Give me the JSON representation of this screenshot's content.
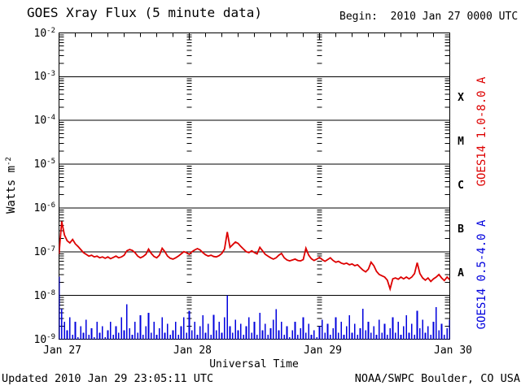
{
  "header": {
    "title": "GOES Xray Flux (5 minute data)",
    "begin": "Begin:  2010 Jan 27 0000 UTC"
  },
  "footer": {
    "updated": "Updated 2010 Jan 29 23:05:11 UTC",
    "source": "NOAA/SWPC Boulder, CO USA"
  },
  "colors": {
    "long_channel": "#dd0000",
    "short_channel": "#0000dd",
    "axis": "#000000",
    "background": "#ffffff"
  },
  "chart_data": {
    "type": "line",
    "title": "GOES Xray Flux (5 minute data)",
    "begin_time": "2010 Jan 27 0000 UTC",
    "xlabel": "Universal Time",
    "ylabel_base": "Watts m",
    "ylabel_exp": "-2",
    "yscale": "log",
    "ylim_log10": [
      -9,
      -2
    ],
    "x_range_hours": [
      0,
      72
    ],
    "grid": {
      "horizontal_decades": true,
      "vertical_day_dotted_hours": [
        24,
        48
      ],
      "minor_tick_hours": 3
    },
    "y_ticks": [
      {
        "base": "10",
        "exp": "-2"
      },
      {
        "base": "10",
        "exp": "-3"
      },
      {
        "base": "10",
        "exp": "-4"
      },
      {
        "base": "10",
        "exp": "-5"
      },
      {
        "base": "10",
        "exp": "-6"
      },
      {
        "base": "10",
        "exp": "-7"
      },
      {
        "base": "10",
        "exp": "-8"
      },
      {
        "base": "10",
        "exp": "-9"
      }
    ],
    "flux_classes": [
      {
        "label": "X",
        "log_center": -3.5
      },
      {
        "label": "M",
        "log_center": -4.5
      },
      {
        "label": "C",
        "log_center": -5.5
      },
      {
        "label": "B",
        "log_center": -6.5
      },
      {
        "label": "A",
        "log_center": -7.5
      }
    ],
    "x_tick_labels": [
      {
        "label": "Jan 27",
        "hour": 0
      },
      {
        "label": "Jan 28",
        "hour": 24
      },
      {
        "label": "Jan 29",
        "hour": 48
      },
      {
        "label": "Jan 30",
        "hour": 72
      }
    ],
    "series": [
      {
        "name": "GOES14 1.0-8.0 A",
        "color": "#dd0000",
        "render": "line",
        "units": "W m^-2 (log10)",
        "sample_interval_hours": 0.5,
        "log10_flux": [
          -7.05,
          -6.31,
          -6.62,
          -6.75,
          -6.8,
          -6.72,
          -6.82,
          -6.88,
          -6.95,
          -7.02,
          -7.06,
          -7.1,
          -7.08,
          -7.12,
          -7.1,
          -7.14,
          -7.12,
          -7.15,
          -7.12,
          -7.16,
          -7.13,
          -7.1,
          -7.14,
          -7.12,
          -7.08,
          -6.98,
          -6.95,
          -6.97,
          -7.02,
          -7.1,
          -7.14,
          -7.11,
          -7.06,
          -6.94,
          -7.04,
          -7.11,
          -7.14,
          -7.08,
          -6.92,
          -7.0,
          -7.1,
          -7.15,
          -7.17,
          -7.14,
          -7.1,
          -7.05,
          -7.0,
          -7.02,
          -7.06,
          -7.0,
          -6.96,
          -6.93,
          -6.96,
          -7.02,
          -7.07,
          -7.1,
          -7.08,
          -7.11,
          -7.12,
          -7.09,
          -7.04,
          -6.94,
          -6.55,
          -6.9,
          -6.84,
          -6.78,
          -6.81,
          -6.88,
          -6.94,
          -7.0,
          -7.02,
          -6.98,
          -7.02,
          -7.05,
          -6.9,
          -6.98,
          -7.06,
          -7.1,
          -7.14,
          -7.17,
          -7.14,
          -7.08,
          -7.04,
          -7.14,
          -7.19,
          -7.21,
          -7.19,
          -7.17,
          -7.2,
          -7.21,
          -7.18,
          -6.92,
          -7.08,
          -7.16,
          -7.2,
          -7.17,
          -7.13,
          -7.18,
          -7.22,
          -7.18,
          -7.14,
          -7.2,
          -7.24,
          -7.22,
          -7.26,
          -7.28,
          -7.26,
          -7.3,
          -7.28,
          -7.32,
          -7.3,
          -7.36,
          -7.42,
          -7.46,
          -7.4,
          -7.24,
          -7.32,
          -7.45,
          -7.52,
          -7.55,
          -7.58,
          -7.65,
          -7.85,
          -7.62,
          -7.6,
          -7.63,
          -7.58,
          -7.62,
          -7.58,
          -7.62,
          -7.58,
          -7.5,
          -7.25,
          -7.5,
          -7.6,
          -7.65,
          -7.6,
          -7.68,
          -7.62,
          -7.58,
          -7.52,
          -7.6,
          -7.66,
          -7.58,
          -7.64
        ]
      },
      {
        "name": "GOES14 0.5-4.0 A",
        "color": "#0000dd",
        "render": "bars",
        "units": "W m^-2 (log10)",
        "sample_interval_hours": 0.5,
        "log10_flux": [
          -7.57,
          -8.3,
          -8.6,
          -8.8,
          -8.5,
          -8.9,
          -8.6,
          -8.95,
          -8.7,
          -8.85,
          -8.55,
          -8.9,
          -8.75,
          -8.95,
          -8.6,
          -8.85,
          -8.7,
          -8.95,
          -8.8,
          -8.6,
          -8.9,
          -8.7,
          -8.85,
          -8.5,
          -8.8,
          -8.2,
          -8.75,
          -8.9,
          -8.6,
          -8.85,
          -8.45,
          -8.9,
          -8.7,
          -8.4,
          -8.85,
          -8.6,
          -8.9,
          -8.75,
          -8.5,
          -8.85,
          -8.65,
          -8.9,
          -8.8,
          -8.6,
          -8.9,
          -8.7,
          -8.5,
          -8.85,
          -8.35,
          -8.8,
          -8.6,
          -8.9,
          -8.7,
          -8.45,
          -8.85,
          -8.65,
          -8.9,
          -8.44,
          -8.8,
          -8.6,
          -8.85,
          -8.5,
          -8.0,
          -8.7,
          -8.85,
          -8.55,
          -8.8,
          -8.65,
          -8.9,
          -8.7,
          -8.5,
          -8.85,
          -8.6,
          -8.9,
          -8.4,
          -8.8,
          -8.65,
          -8.9,
          -8.75,
          -8.55,
          -8.31,
          -8.8,
          -8.6,
          -8.9,
          -8.7,
          -8.95,
          -8.8,
          -8.6,
          -8.9,
          -8.75,
          -8.5,
          -8.85,
          -8.65,
          -8.9,
          -8.8,
          -8.95,
          -8.7,
          -8.55,
          -8.85,
          -8.65,
          -8.9,
          -8.75,
          -8.5,
          -8.85,
          -8.6,
          -8.9,
          -8.7,
          -8.45,
          -8.85,
          -8.65,
          -8.9,
          -8.75,
          -8.3,
          -8.8,
          -8.6,
          -8.85,
          -8.7,
          -8.9,
          -8.55,
          -8.85,
          -8.65,
          -8.9,
          -8.75,
          -8.5,
          -8.85,
          -8.6,
          -8.9,
          -8.7,
          -8.45,
          -8.85,
          -8.65,
          -8.9,
          -8.35,
          -8.75,
          -8.55,
          -8.85,
          -8.7,
          -8.9,
          -8.6,
          -8.27,
          -8.8,
          -8.65,
          -8.9,
          -8.75,
          -8.55
        ]
      }
    ]
  }
}
